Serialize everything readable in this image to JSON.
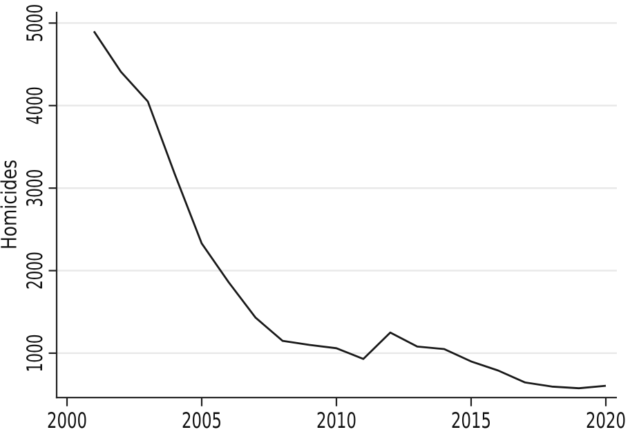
{
  "chart_data": {
    "type": "line",
    "title": "",
    "xlabel": "",
    "ylabel": "Homicides",
    "x": [
      2001,
      2002,
      2003,
      2004,
      2005,
      2006,
      2007,
      2008,
      2009,
      2010,
      2011,
      2012,
      2013,
      2014,
      2015,
      2016,
      2017,
      2018,
      2019,
      2020
    ],
    "series": [
      {
        "name": "Homicides",
        "values": [
          4900,
          4410,
          4050,
          3170,
          2330,
          1860,
          1430,
          1150,
          1100,
          1060,
          930,
          1250,
          1080,
          1050,
          900,
          790,
          645,
          595,
          575,
          605
        ]
      }
    ],
    "x_ticks": [
      2000,
      2005,
      2010,
      2015,
      2020
    ],
    "y_ticks": [
      1000,
      2000,
      3000,
      4000,
      5000
    ],
    "xlim": [
      1999.615,
      2020.41
    ],
    "ylim": [
      462,
      5137
    ],
    "grid": "horizontal-only",
    "legend": "none",
    "y_label_rotation": "bottom-to-top",
    "colors": {
      "line": "#1a1a1a",
      "grid": "#e8e8e8",
      "axis": "#1f1f1f",
      "text": "#111111",
      "background": "#ffffff"
    }
  }
}
